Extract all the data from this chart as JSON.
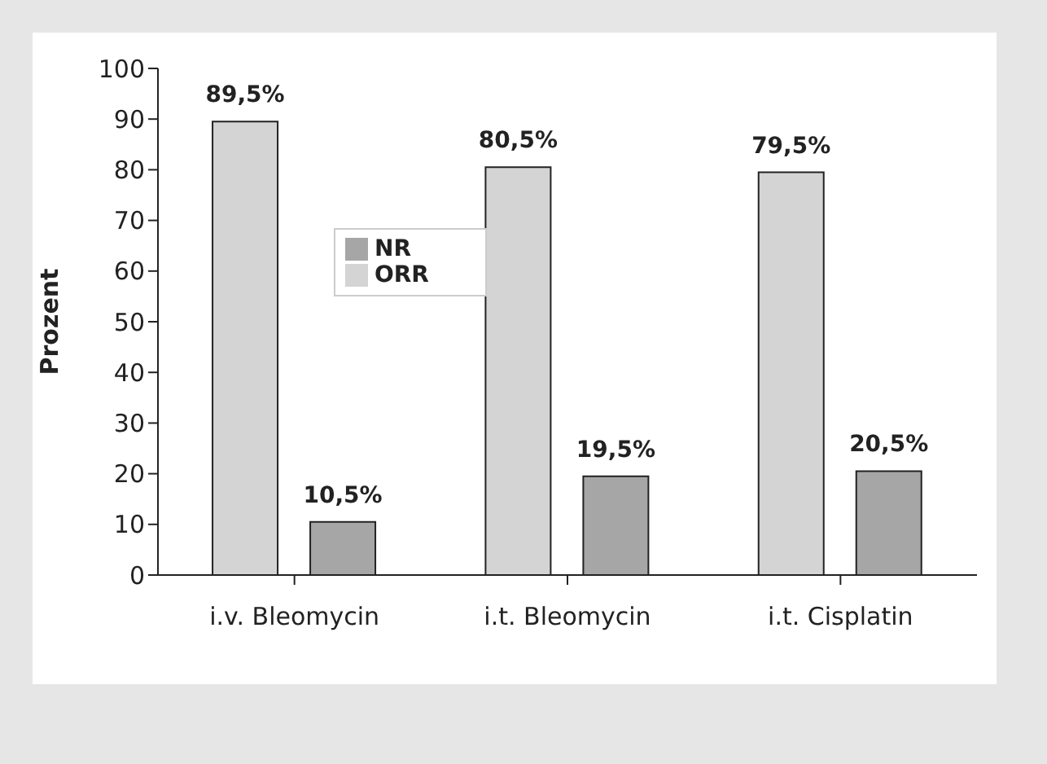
{
  "chart_data": {
    "type": "bar",
    "ylabel": "Prozent",
    "categories": [
      "i.v. Bleomycin",
      "i.t. Bleomycin",
      "i.t. Cisplatin"
    ],
    "series": [
      {
        "name": "ORR",
        "color": "#d4d4d4",
        "values": [
          89.5,
          80.5,
          79.5
        ],
        "value_labels": [
          "89,5%",
          "80,5%",
          "79,5%"
        ]
      },
      {
        "name": "NR",
        "color": "#a6a6a6",
        "values": [
          10.5,
          19.5,
          20.5
        ],
        "value_labels": [
          "10,5%",
          "19,5%",
          "20,5%"
        ]
      }
    ],
    "ylim": [
      0,
      100
    ],
    "yticks": [
      0,
      10,
      20,
      30,
      40,
      50,
      60,
      70,
      80,
      90,
      100
    ],
    "grid": false,
    "legend": "top left"
  }
}
